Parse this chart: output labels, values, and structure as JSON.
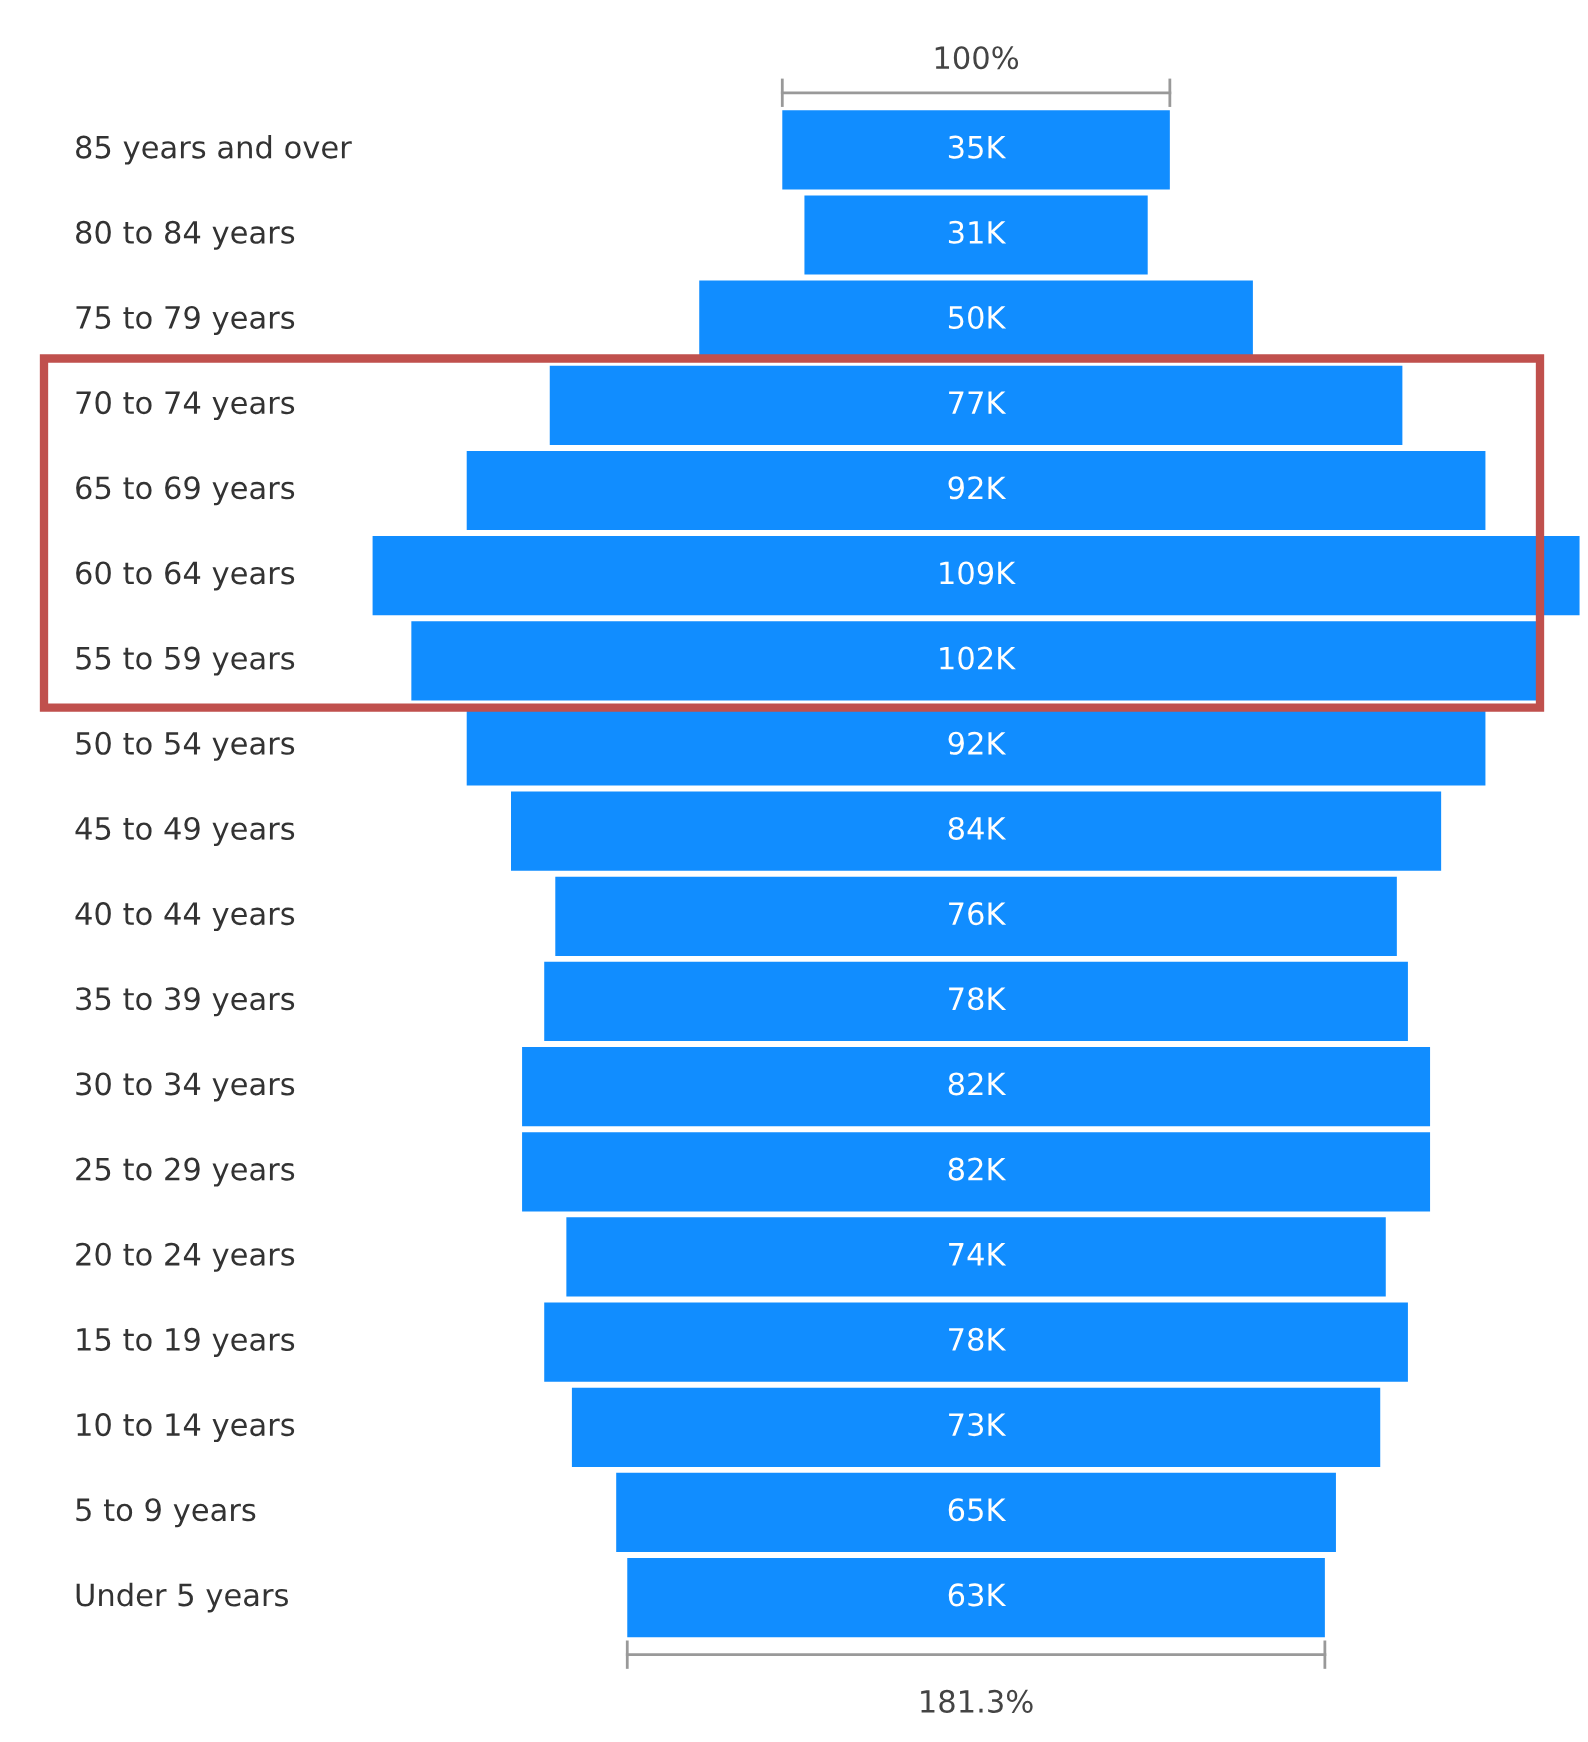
{
  "chart_data": {
    "type": "other",
    "categories": [
      "85 years and over",
      "80 to 84 years",
      "75 to 79 years",
      "70 to 74 years",
      "65 to 69 years",
      "60 to 64 years",
      "55 to 59 years",
      "50 to 54 years",
      "45 to 49 years",
      "40 to 44 years",
      "35 to 39 years",
      "30 to 34 years",
      "25 to 29 years",
      "20 to 24 years",
      "15 to 19 years",
      "10 to 14 years",
      "5 to 9 years",
      "Under 5 years"
    ],
    "values": [
      35,
      31,
      50,
      77,
      92,
      109,
      102,
      92,
      84,
      76,
      78,
      82,
      82,
      74,
      78,
      73,
      65,
      63
    ],
    "value_labels": [
      "35K",
      "31K",
      "50K",
      "77K",
      "92K",
      "109K",
      "102K",
      "92K",
      "84K",
      "76K",
      "78K",
      "82K",
      "82K",
      "74K",
      "78K",
      "73K",
      "65K",
      "63K"
    ],
    "color": "#118dff",
    "annotations": [
      "100%",
      "181.3%"
    ]
  }
}
